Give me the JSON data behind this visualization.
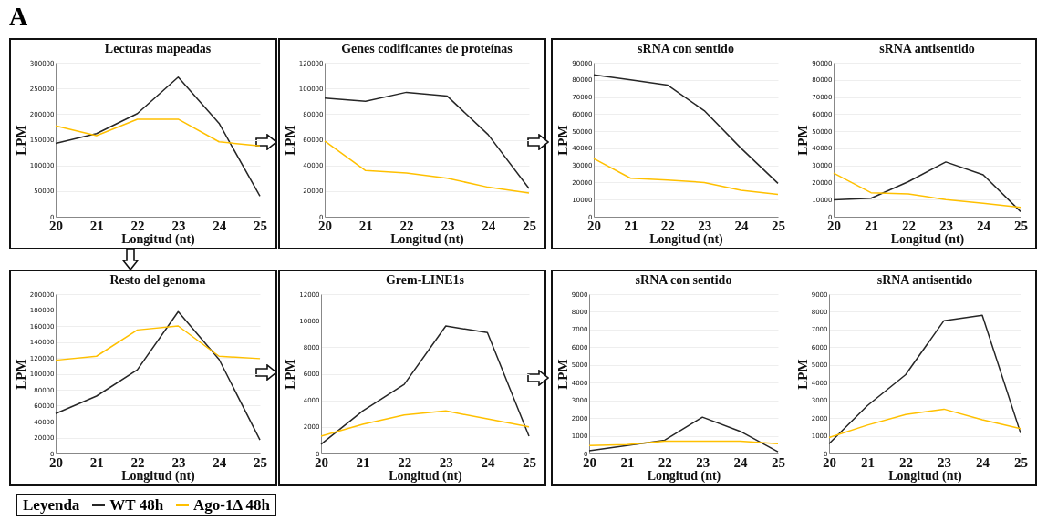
{
  "chart_data": [
    {
      "type": "line",
      "title": "Lecturas mapeadas",
      "xlabel": "Longitud (nt)",
      "ylabel": "LPM",
      "annotations": [
        "A"
      ],
      "legend": "bottom",
      "legend_title": "Leyenda",
      "grid": "y",
      "x": [
        20,
        21,
        22,
        23,
        24,
        25
      ],
      "xlim": [
        20,
        25
      ],
      "xticks": [
        20,
        21,
        22,
        23,
        24,
        25
      ],
      "ylim": [
        0,
        300000
      ],
      "yticks": [
        0,
        50000,
        100000,
        150000,
        200000,
        250000,
        300000
      ],
      "series": [
        {
          "name": "WT 48h",
          "color": "#262626",
          "values": [
            143000,
            162000,
            201000,
            272000,
            182000,
            40000
          ]
        },
        {
          "name": "Ago-1Δ 48h",
          "color": "#ffc000",
          "values": [
            177000,
            158000,
            190000,
            190000,
            146000,
            138000
          ]
        }
      ]
    },
    {
      "type": "line",
      "title": "Genes codificantes de proteínas",
      "xlabel": "Longitud (nt)",
      "ylabel": "LPM",
      "grid": "y",
      "x": [
        20,
        21,
        22,
        23,
        24,
        25
      ],
      "xlim": [
        20,
        25
      ],
      "xticks": [
        20,
        21,
        22,
        23,
        24,
        25
      ],
      "ylim": [
        0,
        120000
      ],
      "yticks": [
        0,
        20000,
        40000,
        60000,
        80000,
        100000,
        120000
      ],
      "series": [
        {
          "color": "#262626",
          "values": [
            92500,
            90000,
            97000,
            94000,
            64000,
            22000
          ]
        },
        {
          "color": "#ffc000",
          "values": [
            59000,
            36000,
            34000,
            30000,
            23000,
            18500
          ]
        }
      ]
    },
    {
      "type": "line",
      "title": "sRNA con sentido",
      "xlabel": "Longitud (nt)",
      "ylabel": "LPM",
      "grid": "y",
      "x": [
        20,
        21,
        22,
        23,
        24,
        25
      ],
      "xlim": [
        20,
        25
      ],
      "xticks": [
        20,
        21,
        22,
        23,
        24,
        25
      ],
      "ylim": [
        0,
        90000
      ],
      "yticks": [
        0,
        10000,
        20000,
        30000,
        40000,
        50000,
        60000,
        70000,
        80000,
        90000
      ],
      "series": [
        {
          "color": "#262626",
          "values": [
            83000,
            80000,
            77000,
            62000,
            40000,
            19500
          ]
        },
        {
          "color": "#ffc000",
          "values": [
            34000,
            22500,
            21500,
            20000,
            15500,
            13000
          ]
        }
      ]
    },
    {
      "type": "line",
      "title": "sRNA antisentido",
      "xlabel": "Longitud (nt)",
      "ylabel": "LPM",
      "grid": "y",
      "x": [
        20,
        21,
        22,
        23,
        24,
        25
      ],
      "xlim": [
        20,
        25
      ],
      "xticks": [
        20,
        21,
        22,
        23,
        24,
        25
      ],
      "ylim": [
        0,
        90000
      ],
      "yticks": [
        0,
        10000,
        20000,
        30000,
        40000,
        50000,
        60000,
        70000,
        80000,
        90000
      ],
      "series": [
        {
          "color": "#262626",
          "values": [
            9800,
            10800,
            20500,
            32000,
            24500,
            3000
          ]
        },
        {
          "color": "#ffc000",
          "values": [
            25500,
            14000,
            13300,
            10000,
            7800,
            5500
          ]
        }
      ]
    },
    {
      "type": "line",
      "title": "Resto del genoma",
      "xlabel": "Longitud (nt)",
      "ylabel": "LPM",
      "grid": "y",
      "x": [
        20,
        21,
        22,
        23,
        24,
        25
      ],
      "xlim": [
        20,
        25
      ],
      "xticks": [
        20,
        21,
        22,
        23,
        24,
        25
      ],
      "ylim": [
        0,
        200000
      ],
      "yticks": [
        0,
        20000,
        40000,
        60000,
        80000,
        100000,
        120000,
        140000,
        160000,
        180000,
        200000
      ],
      "series": [
        {
          "color": "#262626",
          "values": [
            50000,
            72000,
            105000,
            178000,
            118000,
            17000
          ]
        },
        {
          "color": "#ffc000",
          "values": [
            117000,
            122000,
            155000,
            160000,
            122000,
            119000
          ]
        }
      ]
    },
    {
      "type": "line",
      "title": "Grem-LINE1s",
      "xlabel": "Longitud (nt)",
      "ylabel": "LPM",
      "grid": "y",
      "x": [
        20,
        21,
        22,
        23,
        24,
        25
      ],
      "xlim": [
        20,
        25
      ],
      "xticks": [
        20,
        21,
        22,
        23,
        24,
        25
      ],
      "ylim": [
        0,
        12000
      ],
      "yticks": [
        0,
        2000,
        4000,
        6000,
        8000,
        10000,
        12000
      ],
      "series": [
        {
          "color": "#262626",
          "values": [
            700,
            3200,
            5200,
            9600,
            9100,
            1300
          ]
        },
        {
          "color": "#ffc000",
          "values": [
            1300,
            2200,
            2900,
            3200,
            2600,
            2000
          ]
        }
      ]
    },
    {
      "type": "line",
      "title": "sRNA con sentido",
      "xlabel": "Longitud (nt)",
      "ylabel": "LPM",
      "grid": "y",
      "x": [
        20,
        21,
        22,
        23,
        24,
        25
      ],
      "xlim": [
        20,
        25
      ],
      "xticks": [
        20,
        21,
        22,
        23,
        24,
        25
      ],
      "ylim": [
        0,
        9000
      ],
      "yticks": [
        0,
        1000,
        2000,
        3000,
        4000,
        5000,
        6000,
        7000,
        8000,
        9000
      ],
      "series": [
        {
          "color": "#262626",
          "values": [
            150,
            450,
            750,
            2050,
            1250,
            100
          ]
        },
        {
          "color": "#ffc000",
          "values": [
            450,
            500,
            700,
            700,
            700,
            550
          ]
        }
      ]
    },
    {
      "type": "line",
      "title": "sRNA antisentido",
      "xlabel": "Longitud (nt)",
      "ylabel": "LPM",
      "grid": "y",
      "x": [
        20,
        21,
        22,
        23,
        24,
        25
      ],
      "xlim": [
        20,
        25
      ],
      "xticks": [
        20,
        21,
        22,
        23,
        24,
        25
      ],
      "ylim": [
        0,
        9000
      ],
      "yticks": [
        0,
        1000,
        2000,
        3000,
        4000,
        5000,
        6000,
        7000,
        8000,
        9000
      ],
      "series": [
        {
          "color": "#262626",
          "values": [
            550,
            2700,
            4450,
            7500,
            7800,
            1150
          ]
        },
        {
          "color": "#ffc000",
          "values": [
            900,
            1600,
            2200,
            2500,
            1900,
            1400
          ]
        }
      ]
    }
  ]
}
